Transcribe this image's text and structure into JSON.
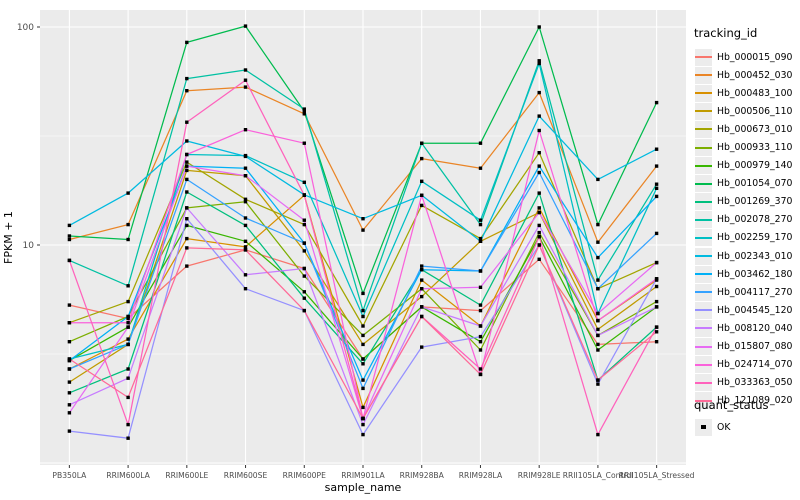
{
  "chart_data": {
    "type": "line",
    "title": "",
    "xlabel": "sample_name",
    "ylabel": "FPKM + 1",
    "y_scale": "log10",
    "ylim": [
      0.95,
      120
    ],
    "y_major_ticks": [
      10,
      100
    ],
    "y_major_tick_labels": [
      "10",
      "100"
    ],
    "y_minor_gridlines": [
      3.162,
      31.62
    ],
    "grid": "on",
    "panel_background": "#EBEBEB",
    "gridline_color": "#FFFFFF",
    "point_color": "#000000",
    "legend_position": "right",
    "categories": [
      "PB350LA",
      "RRIM600LA",
      "RRIM600LE",
      "RRIM600SE",
      "RRIM600PE",
      "RRIM901LA",
      "RRIM928BA",
      "RRIM928LA",
      "RRIM928LE",
      "RRII105LA_Control",
      "RRII105LA_Stressed"
    ],
    "legend_title": "tracking_id",
    "series": [
      {
        "name": "Hb_000015_090",
        "color": "#F8766D",
        "values": [
          5.3,
          4.6,
          8.0,
          9.5,
          7.8,
          3.0,
          5.2,
          5.0,
          8.6,
          3.5,
          3.6
        ]
      },
      {
        "name": "Hb_000452_030",
        "color": "#EA8526",
        "values": [
          10.6,
          12.4,
          51,
          53,
          40,
          11.7,
          24.9,
          22.5,
          50,
          10.3,
          23
        ]
      },
      {
        "name": "Hb_000483_100",
        "color": "#D89000",
        "values": [
          2.7,
          3.7,
          10.7,
          9.8,
          16.9,
          1.8,
          6.9,
          4.25,
          14.8,
          4.5,
          6.9
        ]
      },
      {
        "name": "Hb_000506_110",
        "color": "#C09B00",
        "values": [
          2.35,
          3.5,
          22,
          20.8,
          9.4,
          3.5,
          5.8,
          10.4,
          14.1,
          4.1,
          6.45
        ]
      },
      {
        "name": "Hb_000673_010",
        "color": "#A3A500",
        "values": [
          4.4,
          5.5,
          24,
          16.2,
          12.4,
          4.25,
          15.2,
          10.7,
          26.5,
          6.3,
          8.3
        ]
      },
      {
        "name": "Hb_000933_110",
        "color": "#7CAE00",
        "values": [
          3.6,
          4.7,
          14.8,
          15.8,
          7.2,
          3.85,
          6.3,
          3.3,
          11.4,
          3.85,
          5.5
        ]
      },
      {
        "name": "Hb_000979_140",
        "color": "#39B600",
        "values": [
          2.95,
          4.2,
          12.3,
          10.4,
          6.1,
          3.0,
          5.2,
          3.6,
          10.9,
          3.3,
          5.2
        ]
      },
      {
        "name": "Hb_001054_070",
        "color": "#00BB4E",
        "values": [
          11.0,
          10.6,
          85,
          101,
          41,
          6.0,
          29.3,
          29.3,
          100,
          12.4,
          45
        ]
      },
      {
        "name": "Hb_001269_370",
        "color": "#00BF7D",
        "values": [
          2.1,
          2.7,
          17.5,
          12.3,
          5.7,
          2.85,
          7.7,
          5.3,
          17.3,
          2.4,
          4.2
        ]
      },
      {
        "name": "Hb_002078_270",
        "color": "#00C1A3",
        "values": [
          8.5,
          6.5,
          58,
          63.5,
          42,
          5.0,
          29.3,
          12.4,
          70,
          6.9,
          19
        ]
      },
      {
        "name": "Hb_002259_170",
        "color": "#00BFC4",
        "values": [
          3.0,
          3.5,
          26,
          25.7,
          19.4,
          4.7,
          19.6,
          13,
          68,
          4.85,
          18.2
        ]
      },
      {
        "name": "Hb_002343_010",
        "color": "#00BAE0",
        "values": [
          12.3,
          17.3,
          30,
          25.5,
          17,
          13.2,
          16.9,
          10.4,
          39,
          20,
          27.5
        ]
      },
      {
        "name": "Hb_003462_180",
        "color": "#00B0F6",
        "values": [
          2.95,
          4.7,
          23,
          22.5,
          10.2,
          2.4,
          7.7,
          7.6,
          23,
          8.75,
          16.7
        ]
      },
      {
        "name": "Hb_004117_270",
        "color": "#35A2FF",
        "values": [
          2.7,
          3.5,
          20,
          13.3,
          10.2,
          2.2,
          8.0,
          7.6,
          21.5,
          6.3,
          11.3
        ]
      },
      {
        "name": "Hb_004545_120",
        "color": "#9590FF",
        "values": [
          1.4,
          1.3,
          13.2,
          6.3,
          5.0,
          1.35,
          3.4,
          3.8,
          10,
          2.3,
          7.0
        ]
      },
      {
        "name": "Hb_008120_040",
        "color": "#C77CFF",
        "values": [
          1.85,
          2.45,
          14.8,
          7.3,
          7.8,
          1.5,
          5.2,
          4.25,
          12.3,
          3.85,
          5.2
        ]
      },
      {
        "name": "Hb_015807_080",
        "color": "#E76BF3",
        "values": [
          1.7,
          4.2,
          23,
          20.8,
          13,
          1.6,
          6.3,
          6.4,
          14.1,
          4.85,
          8.3
        ]
      },
      {
        "name": "Hb_024714_070",
        "color": "#FA62DB",
        "values": [
          4.4,
          4.4,
          26,
          33.8,
          29.3,
          1.6,
          16.9,
          2.55,
          33.5,
          4.5,
          7.0
        ]
      },
      {
        "name": "Hb_033363_050",
        "color": "#FF62BC",
        "values": [
          8.5,
          1.5,
          36.6,
          57,
          16.9,
          1.6,
          4.7,
          2.7,
          10.9,
          1.35,
          4.2
        ]
      },
      {
        "name": "Hb_121089_020",
        "color": "#FF6A98",
        "values": [
          3.0,
          2.0,
          9.7,
          9.5,
          5.0,
          1.6,
          4.7,
          2.55,
          10,
          2.4,
          4.0
        ]
      }
    ],
    "quant_legend": {
      "title": "quant_status",
      "items": [
        "OK"
      ]
    }
  }
}
